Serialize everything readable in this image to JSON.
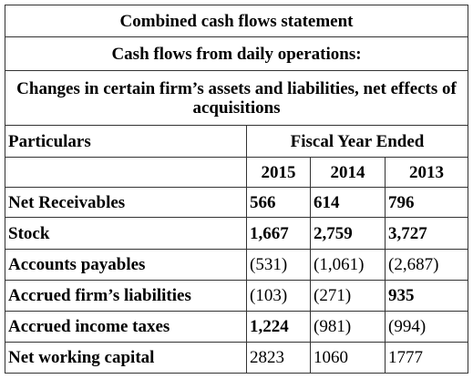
{
  "header": {
    "title": "Combined cash flows statement",
    "subtitle": "Cash flows from daily operations:",
    "caption": "Changes in certain firm’s assets and liabilities, net effects of acquisitions"
  },
  "table": {
    "columns": [
      "Particulars",
      "Fiscal Year Ended"
    ],
    "years": [
      "2015",
      "2014",
      "2013"
    ],
    "rows": [
      [
        "Net Receivables",
        "566",
        "614",
        "796"
      ],
      [
        "Stock",
        "1,667",
        "2,759",
        "3,727"
      ],
      [
        "Accounts payables",
        "(531)",
        "(1,061)",
        "(2,687)"
      ],
      [
        "Accrued firm’s liabilities",
        "(103)",
        "(271)",
        "935"
      ],
      [
        "Accrued income taxes",
        "1,224",
        "(981)",
        "(994)"
      ],
      [
        "Net working capital",
        "2823",
        "1060",
        "1777"
      ]
    ]
  }
}
